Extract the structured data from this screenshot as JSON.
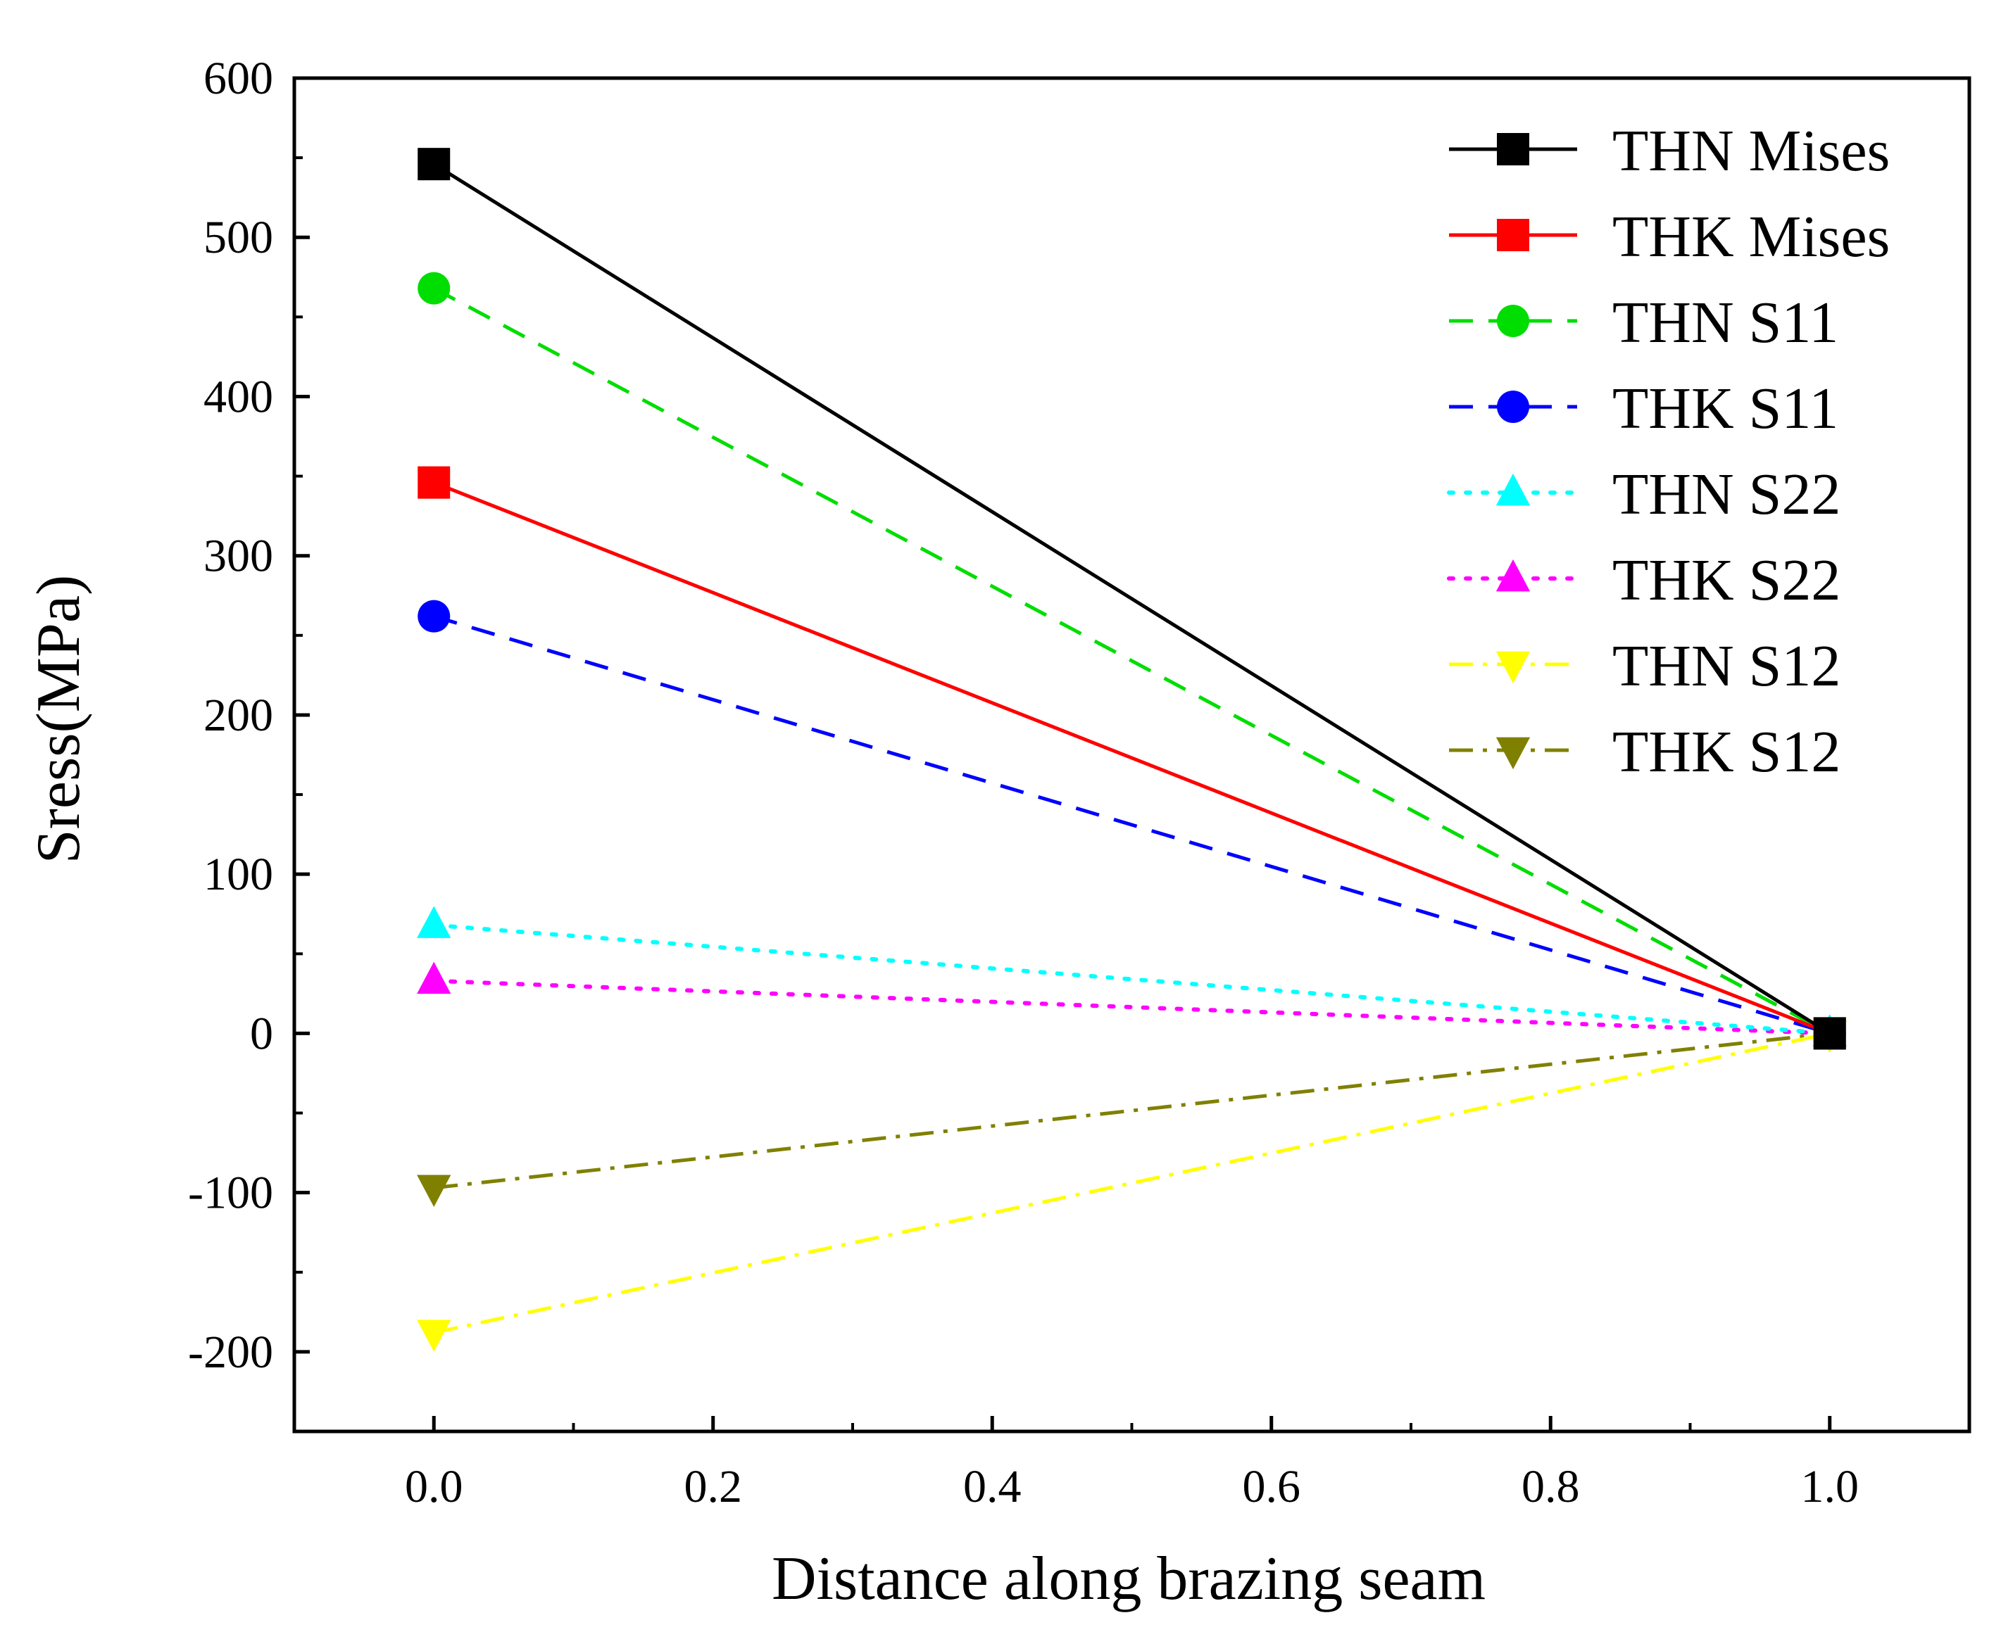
{
  "chart_data": {
    "type": "line",
    "title": "",
    "xlabel": "Distance along brazing seam",
    "ylabel": "Sress(MPa)",
    "xlim": [
      -0.1,
      1.1
    ],
    "ylim": [
      -250,
      600
    ],
    "xticks": [
      0.0,
      0.2,
      0.4,
      0.6,
      0.8,
      1.0
    ],
    "xtick_labels": [
      "0.0",
      "0.2",
      "0.4",
      "0.6",
      "0.8",
      "1.0"
    ],
    "yticks": [
      -200,
      -100,
      0,
      100,
      200,
      300,
      400,
      500,
      600
    ],
    "ytick_labels": [
      "-200",
      "-100",
      "0",
      "100",
      "200",
      "300",
      "400",
      "500",
      "600"
    ],
    "grid": false,
    "legend_position": "top-right",
    "x": [
      0.0,
      1.0
    ],
    "series": [
      {
        "name": "THN Mises",
        "values": [
          546,
          0
        ],
        "color": "#000000",
        "marker": "square",
        "dash": "solid"
      },
      {
        "name": "THK Mises",
        "values": [
          346,
          0
        ],
        "color": "#ff0000",
        "marker": "square",
        "dash": "solid"
      },
      {
        "name": "THN S11",
        "values": [
          468,
          0
        ],
        "color": "#00dd00",
        "marker": "circle",
        "dash": "dash"
      },
      {
        "name": "THK S11",
        "values": [
          262,
          0
        ],
        "color": "#0000ff",
        "marker": "circle",
        "dash": "dash"
      },
      {
        "name": "THN S22",
        "values": [
          68,
          0
        ],
        "color": "#00ffff",
        "marker": "triangle-up",
        "dash": "dot"
      },
      {
        "name": "THK S22",
        "values": [
          33,
          0
        ],
        "color": "#ff00ff",
        "marker": "triangle-up",
        "dash": "dot"
      },
      {
        "name": "THN S12",
        "values": [
          -188,
          0
        ],
        "color": "#ffff00",
        "marker": "triangle-down",
        "dash": "dashdot"
      },
      {
        "name": "THK S12",
        "values": [
          -97,
          0
        ],
        "color": "#808000",
        "marker": "triangle-down",
        "dash": "dashdot"
      }
    ]
  }
}
